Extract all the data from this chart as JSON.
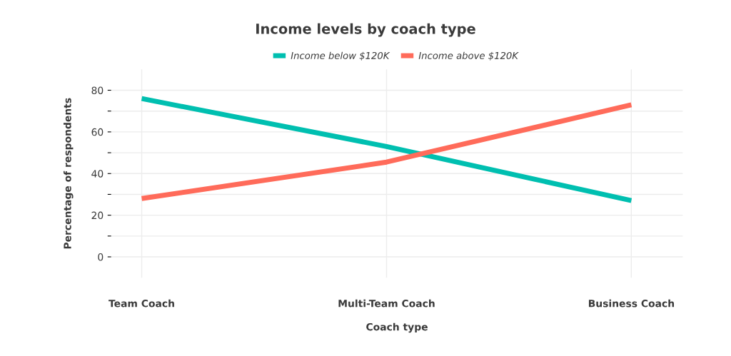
{
  "chart_data": {
    "type": "line",
    "title": "Income levels by coach type",
    "xlabel": "Coach type",
    "ylabel": "Percentage of respondents",
    "categories": [
      "Team Coach",
      "Multi-Team Coach",
      "Business Coach"
    ],
    "series": [
      {
        "name": "Income below $120K",
        "color": "#00bfb0",
        "values": [
          76,
          53,
          27
        ]
      },
      {
        "name": "Income above $120K",
        "color": "#ff6b5a",
        "values": [
          28,
          45.5,
          73
        ]
      }
    ],
    "ylim": [
      -10,
      90
    ],
    "yticks": [
      0,
      {
        "value": 10,
        "label": null
      },
      20,
      {
        "value": 30,
        "label": null
      },
      40,
      {
        "value": 50,
        "label": null
      },
      60,
      {
        "value": 70,
        "label": null
      },
      80
    ],
    "grid": true,
    "legend": "top",
    "marker": "none",
    "line_style": "solid"
  }
}
